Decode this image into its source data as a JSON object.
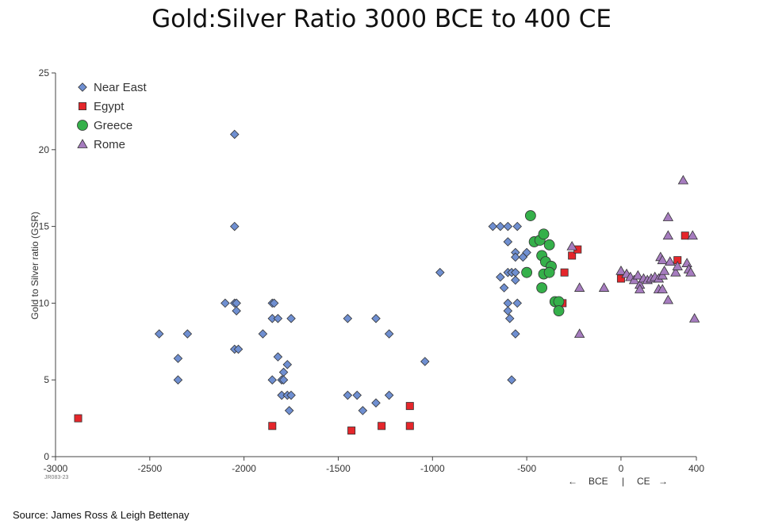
{
  "title": "Gold:Silver Ratio 3000 BCE to 400 CE",
  "source": "Source: James Ross & Leigh Bettenay",
  "chart_code": "JR083-23",
  "era_labels": {
    "bce": "BCE",
    "ce": "CE",
    "separator": "|"
  },
  "colors": {
    "near_east": "#6f8fd1",
    "egypt": "#e5262b",
    "greece": "#35b04a",
    "rome": "#a67cbf",
    "axis": "#444444"
  },
  "chart_data": {
    "type": "scatter",
    "xlabel": "",
    "ylabel": "Gold to Silver ratio (GSR)",
    "xlim": [
      -3000,
      400
    ],
    "ylim": [
      0,
      25
    ],
    "xticks": [
      -3000,
      -2500,
      -2000,
      -1500,
      -1000,
      -500,
      0,
      400
    ],
    "yticks": [
      0,
      5,
      10,
      15,
      20,
      25
    ],
    "legend_position": "top-left",
    "grid": false,
    "series": [
      {
        "name": "Near East",
        "marker": "diamond",
        "points": [
          [
            -2450,
            8
          ],
          [
            -2300,
            8
          ],
          [
            -2350,
            6.4
          ],
          [
            -2350,
            5
          ],
          [
            -2100,
            10
          ],
          [
            -2050,
            21
          ],
          [
            -2050,
            15
          ],
          [
            -2050,
            10
          ],
          [
            -2040,
            10
          ],
          [
            -2040,
            9.5
          ],
          [
            -2050,
            7
          ],
          [
            -2030,
            7
          ],
          [
            -1900,
            8
          ],
          [
            -1850,
            10
          ],
          [
            -1840,
            10
          ],
          [
            -1850,
            9
          ],
          [
            -1820,
            9
          ],
          [
            -1820,
            6.5
          ],
          [
            -1800,
            5
          ],
          [
            -1790,
            5.5
          ],
          [
            -1790,
            5
          ],
          [
            -1850,
            5
          ],
          [
            -1800,
            4
          ],
          [
            -1770,
            6
          ],
          [
            -1770,
            4
          ],
          [
            -1750,
            4
          ],
          [
            -1750,
            9
          ],
          [
            -1760,
            3
          ],
          [
            -1450,
            9
          ],
          [
            -1450,
            4
          ],
          [
            -1400,
            4
          ],
          [
            -1370,
            3
          ],
          [
            -1300,
            3.5
          ],
          [
            -1300,
            9
          ],
          [
            -1230,
            8
          ],
          [
            -1230,
            4
          ],
          [
            -1040,
            6.2
          ],
          [
            -960,
            12
          ],
          [
            -680,
            15
          ],
          [
            -640,
            15
          ],
          [
            -600,
            15
          ],
          [
            -550,
            15
          ],
          [
            -600,
            14
          ],
          [
            -560,
            13.3
          ],
          [
            -560,
            13
          ],
          [
            -520,
            13
          ],
          [
            -500,
            13.3
          ],
          [
            -500,
            12
          ],
          [
            -640,
            11.7
          ],
          [
            -620,
            11
          ],
          [
            -600,
            12
          ],
          [
            -580,
            12
          ],
          [
            -560,
            12
          ],
          [
            -560,
            11.5
          ],
          [
            -600,
            10
          ],
          [
            -600,
            9.5
          ],
          [
            -590,
            9
          ],
          [
            -550,
            10
          ],
          [
            -560,
            8
          ],
          [
            -580,
            5
          ]
        ]
      },
      {
        "name": "Egypt",
        "marker": "square",
        "points": [
          [
            -2880,
            2.5
          ],
          [
            -1850,
            2
          ],
          [
            -1430,
            1.7
          ],
          [
            -1270,
            2
          ],
          [
            -1120,
            2
          ],
          [
            -1120,
            3.3
          ],
          [
            -300,
            12
          ],
          [
            -310,
            10
          ],
          [
            -260,
            13.1
          ],
          [
            -230,
            13.5
          ],
          [
            0,
            11.6
          ],
          [
            300,
            12.8
          ],
          [
            340,
            14.4
          ]
        ]
      },
      {
        "name": "Greece",
        "marker": "circle",
        "points": [
          [
            -480,
            15.7
          ],
          [
            -460,
            14
          ],
          [
            -430,
            14.1
          ],
          [
            -410,
            14.5
          ],
          [
            -380,
            13.8
          ],
          [
            -420,
            13.1
          ],
          [
            -400,
            12.7
          ],
          [
            -370,
            12.4
          ],
          [
            -410,
            11.9
          ],
          [
            -380,
            12
          ],
          [
            -500,
            12
          ],
          [
            -420,
            11
          ],
          [
            -350,
            10.1
          ],
          [
            -330,
            10.1
          ],
          [
            -330,
            9.5
          ]
        ]
      },
      {
        "name": "Rome",
        "marker": "triangle",
        "points": [
          [
            -260,
            13.7
          ],
          [
            -220,
            11
          ],
          [
            -220,
            8
          ],
          [
            -90,
            11
          ],
          [
            0,
            12.1
          ],
          [
            30,
            11.9
          ],
          [
            50,
            11.7
          ],
          [
            70,
            11.5
          ],
          [
            90,
            11.8
          ],
          [
            100,
            11.2
          ],
          [
            100,
            10.9
          ],
          [
            120,
            11.6
          ],
          [
            140,
            11.5
          ],
          [
            160,
            11.6
          ],
          [
            180,
            11.7
          ],
          [
            200,
            11.6
          ],
          [
            200,
            10.9
          ],
          [
            220,
            10.9
          ],
          [
            220,
            11.8
          ],
          [
            230,
            12.1
          ],
          [
            210,
            13
          ],
          [
            220,
            12.8
          ],
          [
            250,
            15.6
          ],
          [
            250,
            14.4
          ],
          [
            250,
            10.2
          ],
          [
            260,
            12.7
          ],
          [
            290,
            12
          ],
          [
            300,
            12.4
          ],
          [
            330,
            18
          ],
          [
            350,
            12.6
          ],
          [
            360,
            12.2
          ],
          [
            370,
            12
          ],
          [
            380,
            14.4
          ],
          [
            390,
            9
          ]
        ]
      }
    ]
  }
}
